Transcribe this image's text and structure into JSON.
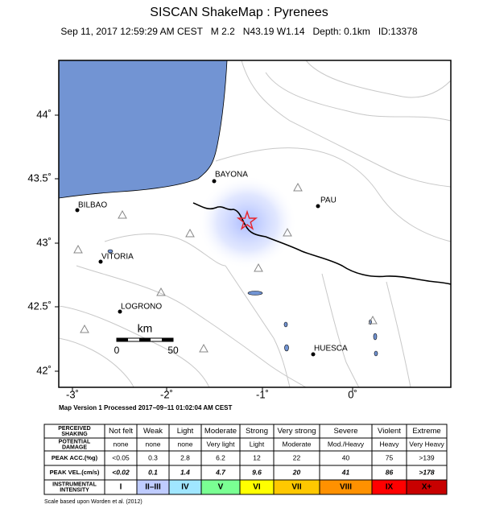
{
  "header": {
    "title": "SISCAN ShakeMap : Pyrenees",
    "subtitle": "Sep 11, 2017 12:59:29 AM CEST   M 2.2   N43.19 W1.14   Depth: 0.1km   ID:13378"
  },
  "map": {
    "xticks": [
      "-3˚",
      "-2˚",
      "-1˚",
      "0˚"
    ],
    "yticks": [
      "44˚",
      "43.5˚",
      "43˚",
      "42.5˚",
      "42˚"
    ],
    "cities": [
      "BAYONA",
      "PAU",
      "BILBAO",
      "VITORIA",
      "LOGRONO",
      "HUESCA"
    ],
    "scale": {
      "unit": "km",
      "ticks": [
        "0",
        "50"
      ]
    }
  },
  "caption": "Map Version 1 Processed 2017−09−11 01:02:04 AM CEST",
  "table": {
    "labels": [
      [
        "PERCEIVED",
        "SHAKING"
      ],
      [
        "POTENTIAL",
        "DAMAGE"
      ],
      [
        "PEAK ACC.(%g)"
      ],
      [
        "PEAK VEL.(cm/s)"
      ],
      [
        "INSTRUMENTAL",
        "INTENSITY"
      ]
    ],
    "rows": [
      [
        "Not felt",
        "Weak",
        "Light",
        "Moderate",
        "Strong",
        "Very strong",
        "Severe",
        "Violent",
        "Extreme"
      ],
      [
        "none",
        "none",
        "none",
        "Very light",
        "Light",
        "Moderate",
        "Mod./Heavy",
        "Heavy",
        "Very Heavy"
      ],
      [
        "<0.05",
        "0.3",
        "2.8",
        "6.2",
        "12",
        "22",
        "40",
        "75",
        ">139"
      ],
      [
        "<0.02",
        "0.1",
        "1.4",
        "4.7",
        "9.6",
        "20",
        "41",
        "86",
        ">178"
      ],
      [
        "I",
        "II–III",
        "IV",
        "V",
        "VI",
        "VII",
        "VIII",
        "IX",
        "X+"
      ]
    ]
  },
  "footnote": "Scale based upon Worden et al. (2012)"
}
